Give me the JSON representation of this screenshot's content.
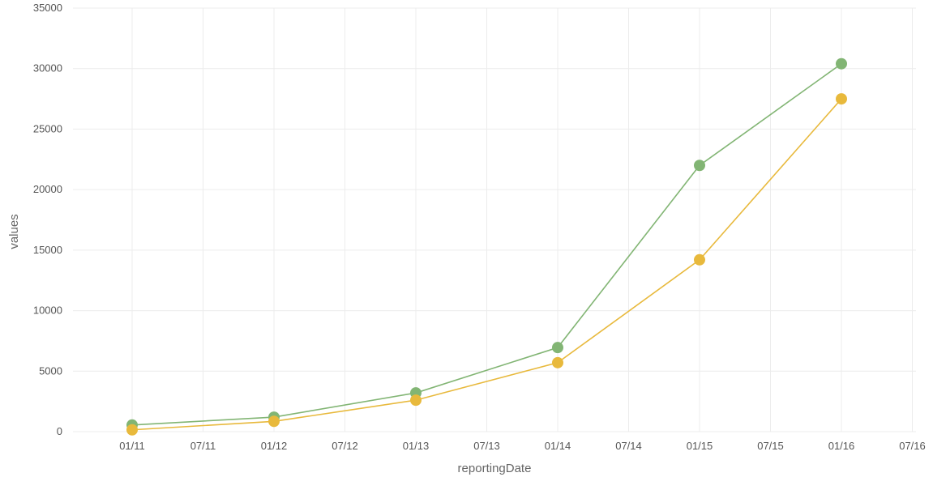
{
  "chart_data": {
    "type": "line",
    "xlabel": "reportingDate",
    "ylabel": "values",
    "ylim": [
      0,
      35000
    ],
    "y_ticks": [
      0,
      5000,
      10000,
      15000,
      20000,
      25000,
      30000,
      35000
    ],
    "x_ticks": [
      "01/11",
      "07/11",
      "01/12",
      "07/12",
      "01/13",
      "07/13",
      "01/14",
      "07/14",
      "01/15",
      "07/15",
      "01/16",
      "07/16"
    ],
    "x": [
      "01/11",
      "01/12",
      "01/13",
      "01/14",
      "01/15",
      "01/16"
    ],
    "grid": true,
    "legend": "none",
    "series": [
      {
        "color": "#82b574",
        "values": [
          550,
          1200,
          3200,
          6950,
          22000,
          30400
        ]
      },
      {
        "color": "#e8b93c",
        "values": [
          150,
          850,
          2600,
          5700,
          14200,
          27500
        ]
      }
    ]
  }
}
